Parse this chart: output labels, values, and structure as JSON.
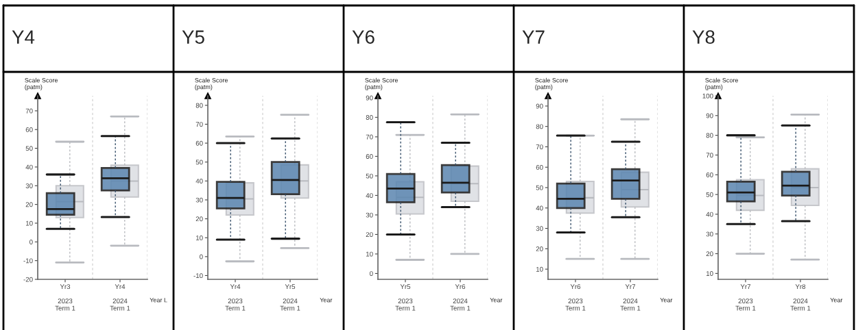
{
  "chart_data": [
    {
      "type": "box",
      "title": "Y4",
      "ylabel": "Scale Score\n(patm)",
      "xlabel": "Year L",
      "categories": [
        "Yr3\n\n2023\nTerm 1",
        "Yr4\n\n2024\nTerm 1"
      ],
      "ylim": [
        -20,
        78
      ],
      "yticks": [
        -20,
        -10,
        0,
        10,
        20,
        30,
        40,
        50,
        60,
        70
      ],
      "series": [
        {
          "color": "#5b86b0",
          "boxes": [
            {
              "low": 7,
              "q1": 14.5,
              "median": 17.5,
              "q3": 26,
              "high": 36
            },
            {
              "low": 13.3,
              "q1": 27.5,
              "median": 34,
              "q3": 39.5,
              "high": 56.5
            }
          ]
        },
        {
          "color": "#d9dbe1",
          "boxes": [
            {
              "low": -11,
              "q1": 13,
              "median": 21.5,
              "q3": 30,
              "high": 53.5
            },
            {
              "low": -2,
              "q1": 24,
              "median": 32.5,
              "q3": 41,
              "high": 67
            }
          ]
        }
      ]
    },
    {
      "type": "box",
      "title": "Y5",
      "ylabel": "Scale Score\n(patm)",
      "xlabel": "Year",
      "categories": [
        "Yr4\n\n2023\nTerm 1",
        "Yr5\n\n2024\nTerm 1"
      ],
      "ylim": [
        -12,
        85
      ],
      "yticks": [
        -10,
        0,
        10,
        20,
        30,
        40,
        50,
        60,
        70,
        80
      ],
      "series": [
        {
          "color": "#5b86b0",
          "boxes": [
            {
              "low": 9,
              "q1": 25.5,
              "median": 31,
              "q3": 39.5,
              "high": 60
            },
            {
              "low": 9.5,
              "q1": 33,
              "median": 40.5,
              "q3": 50,
              "high": 62.5
            }
          ]
        },
        {
          "color": "#d9dbe1",
          "boxes": [
            {
              "low": -2.5,
              "q1": 22,
              "median": 30.5,
              "q3": 39,
              "high": 63.5
            },
            {
              "low": 4.5,
              "q1": 31,
              "median": 40,
              "q3": 48.5,
              "high": 75
            }
          ]
        }
      ]
    },
    {
      "type": "box",
      "title": "Y6",
      "ylabel": "Scale Score\n(patm)",
      "xlabel": "Year",
      "categories": [
        "Yr5\n\n2023\nTerm 1",
        "Yr6\n\n2024\nTerm 1"
      ],
      "ylim": [
        -3,
        91
      ],
      "yticks": [
        0,
        10,
        20,
        30,
        40,
        50,
        60,
        70,
        80,
        90
      ],
      "series": [
        {
          "color": "#5b86b0",
          "boxes": [
            {
              "low": 20,
              "q1": 36.5,
              "median": 43.5,
              "q3": 51,
              "high": 77.5
            },
            {
              "low": 34,
              "q1": 41.5,
              "median": 46.5,
              "q3": 55.5,
              "high": 67
            }
          ]
        },
        {
          "color": "#d9dbe1",
          "boxes": [
            {
              "low": 7,
              "q1": 30.5,
              "median": 39,
              "q3": 47,
              "high": 71
            },
            {
              "low": 10,
              "q1": 37,
              "median": 46,
              "q3": 55,
              "high": 81.5
            }
          ]
        }
      ]
    },
    {
      "type": "box",
      "title": "Y7",
      "ylabel": "Scale Score\n(patm)",
      "xlabel": "Year",
      "categories": [
        "Yr6\n\n2023\nTerm 1",
        "Yr7\n\n2024\nTerm 1"
      ],
      "ylim": [
        5,
        95
      ],
      "yticks": [
        10,
        20,
        30,
        40,
        50,
        60,
        70,
        80,
        90
      ],
      "series": [
        {
          "color": "#5b86b0",
          "boxes": [
            {
              "low": 28,
              "q1": 40,
              "median": 44.5,
              "q3": 52,
              "high": 75.5
            },
            {
              "low": 35.5,
              "q1": 44.5,
              "median": 53.5,
              "q3": 59,
              "high": 72.5
            }
          ]
        },
        {
          "color": "#d9dbe1",
          "boxes": [
            {
              "low": 15,
              "q1": 37.5,
              "median": 45,
              "q3": 53,
              "high": 75.5
            },
            {
              "low": 15,
              "q1": 40.5,
              "median": 49,
              "q3": 57.5,
              "high": 83.5
            }
          ]
        }
      ]
    },
    {
      "type": "box",
      "title": "Y8",
      "ylabel": "Scale Score\n(patm)",
      "xlabel": "Year",
      "categories": [
        "Yr7\n\n2023\nTerm 1",
        "Yr8\n\n2024\nTerm 1"
      ],
      "ylim": [
        7,
        100
      ],
      "yticks": [
        10,
        20,
        30,
        40,
        50,
        60,
        70,
        80,
        90,
        100
      ],
      "series": [
        {
          "color": "#5b86b0",
          "boxes": [
            {
              "low": 35,
              "q1": 46.5,
              "median": 51,
              "q3": 56.5,
              "high": 80
            },
            {
              "low": 36.5,
              "q1": 49.5,
              "median": 54.5,
              "q3": 61.5,
              "high": 85
            }
          ]
        },
        {
          "color": "#d9dbe1",
          "boxes": [
            {
              "low": 20,
              "q1": 42,
              "median": 49.5,
              "q3": 57.5,
              "high": 79
            },
            {
              "low": 17,
              "q1": 44.5,
              "median": 53.5,
              "q3": 63,
              "high": 90.5
            }
          ]
        }
      ]
    }
  ]
}
